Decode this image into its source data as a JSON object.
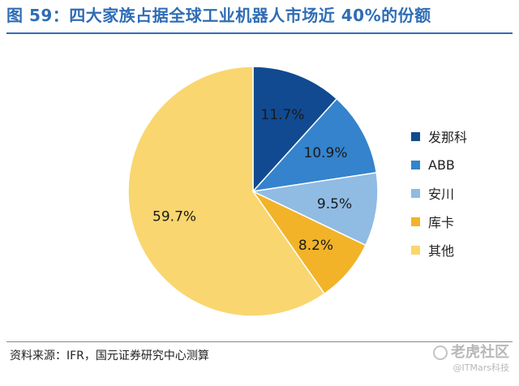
{
  "header": {
    "title": "图 59：四大家族占据全球工业机器人市场近 40%的份额"
  },
  "footer": {
    "source": "资料来源：IFR，国元证券研究中心测算",
    "watermark_brand": "老虎社区",
    "watermark_account": "@ITMars科技"
  },
  "chart_data": {
    "type": "pie",
    "title": "",
    "start_angle_deg": 0,
    "direction": "clockwise",
    "legend_position": "right",
    "slices": [
      {
        "label": "发那科",
        "value": 11.7,
        "display": "11.7%",
        "color": "#114a91"
      },
      {
        "label": "ABB",
        "value": 10.9,
        "display": "10.9%",
        "color": "#3483cc"
      },
      {
        "label": "安川",
        "value": 9.5,
        "display": "9.5%",
        "color": "#90bbe3"
      },
      {
        "label": "库卡",
        "value": 8.2,
        "display": "8.2%",
        "color": "#f2b328"
      },
      {
        "label": "其他",
        "value": 59.7,
        "display": "59.7%",
        "color": "#f9d66f"
      }
    ]
  }
}
